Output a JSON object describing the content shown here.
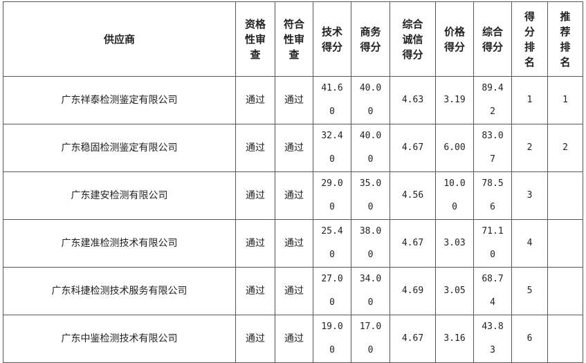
{
  "table": {
    "headers": [
      "供应商",
      "资格性审查",
      "符合性审查",
      "技术得分",
      "商务得分",
      "综合诚信得分",
      "价格得分",
      "综合得分",
      "得分排名",
      "推荐排名"
    ],
    "rows": [
      {
        "supplier": "广东祥泰检测鉴定有限公司",
        "qualification": "通过",
        "compliance": "通过",
        "technical": "41.60",
        "business": "40.00",
        "integrity": "4.63",
        "price": "3.19",
        "total": "89.42",
        "score_rank": "1",
        "recommend_rank": "1"
      },
      {
        "supplier": "广东稳固检测鉴定有限公司",
        "qualification": "通过",
        "compliance": "通过",
        "technical": "32.40",
        "business": "40.00",
        "integrity": "4.67",
        "price": "6.00",
        "total": "83.07",
        "score_rank": "2",
        "recommend_rank": "2"
      },
      {
        "supplier": "广东建安检测有限公司",
        "qualification": "通过",
        "compliance": "通过",
        "technical": "29.00",
        "business": "35.00",
        "integrity": "4.56",
        "price": "10.00",
        "total": "78.56",
        "score_rank": "3",
        "recommend_rank": ""
      },
      {
        "supplier": "广东建准检测技术有限公司",
        "qualification": "通过",
        "compliance": "通过",
        "technical": "25.40",
        "business": "38.00",
        "integrity": "4.67",
        "price": "3.03",
        "total": "71.10",
        "score_rank": "4",
        "recommend_rank": ""
      },
      {
        "supplier": "广东科捷检测技术服务有限公司",
        "qualification": "通过",
        "compliance": "通过",
        "technical": "27.00",
        "business": "34.00",
        "integrity": "4.69",
        "price": "3.05",
        "total": "68.74",
        "score_rank": "5",
        "recommend_rank": ""
      },
      {
        "supplier": "广东中鉴检测技术有限公司",
        "qualification": "通过",
        "compliance": "通过",
        "technical": "19.00",
        "business": "17.00",
        "integrity": "4.67",
        "price": "3.16",
        "total": "43.83",
        "score_rank": "6",
        "recommend_rank": ""
      }
    ]
  }
}
